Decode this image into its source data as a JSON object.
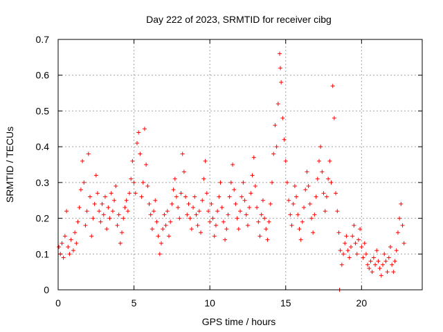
{
  "chart_data": {
    "type": "scatter",
    "title": "Day 222 of 2023, SRMTID for receiver cibg",
    "xlabel": "GPS time / hours",
    "ylabel": "SRMTID / TECUs",
    "xlim": [
      0,
      24
    ],
    "ylim": [
      0,
      0.7
    ],
    "xticks": [
      0,
      5,
      10,
      15,
      20
    ],
    "yticks": [
      0,
      0.1,
      0.2,
      0.3,
      0.4,
      0.5,
      0.6,
      0.7
    ],
    "xtick_labels": [
      "0",
      "5",
      "10",
      "15",
      "20"
    ],
    "ytick_labels": [
      "0",
      "0.1",
      "0.2",
      "0.3",
      "0.4",
      "0.5",
      "0.6",
      "0.7"
    ],
    "grid": true,
    "marker": "plus",
    "color": "#ff0000",
    "series": [
      {
        "name": "SRMTID",
        "points": [
          [
            0.05,
            0.12
          ],
          [
            0.15,
            0.1
          ],
          [
            0.25,
            0.13
          ],
          [
            0.35,
            0.09
          ],
          [
            0.45,
            0.15
          ],
          [
            0.55,
            0.22
          ],
          [
            0.65,
            0.12
          ],
          [
            0.75,
            0.1
          ],
          [
            0.85,
            0.14
          ],
          [
            1.0,
            0.11
          ],
          [
            1.1,
            0.16
          ],
          [
            1.2,
            0.13
          ],
          [
            1.3,
            0.19
          ],
          [
            1.4,
            0.23
          ],
          [
            1.5,
            0.28
          ],
          [
            1.6,
            0.36
          ],
          [
            1.7,
            0.3
          ],
          [
            1.8,
            0.18
          ],
          [
            1.9,
            0.22
          ],
          [
            2.0,
            0.38
          ],
          [
            2.1,
            0.26
          ],
          [
            2.2,
            0.15
          ],
          [
            2.3,
            0.2
          ],
          [
            2.4,
            0.24
          ],
          [
            2.5,
            0.32
          ],
          [
            2.6,
            0.27
          ],
          [
            2.7,
            0.22
          ],
          [
            2.8,
            0.19
          ],
          [
            2.9,
            0.24
          ],
          [
            3.0,
            0.21
          ],
          [
            3.1,
            0.26
          ],
          [
            3.2,
            0.17
          ],
          [
            3.3,
            0.23
          ],
          [
            3.4,
            0.2
          ],
          [
            3.5,
            0.27
          ],
          [
            3.6,
            0.22
          ],
          [
            3.7,
            0.25
          ],
          [
            3.8,
            0.29
          ],
          [
            3.9,
            0.18
          ],
          [
            4.0,
            0.21
          ],
          [
            4.1,
            0.13
          ],
          [
            4.2,
            0.16
          ],
          [
            4.3,
            0.2
          ],
          [
            4.4,
            0.23
          ],
          [
            4.5,
            0.25
          ],
          [
            4.6,
            0.22
          ],
          [
            4.7,
            0.27
          ],
          [
            4.8,
            0.31
          ],
          [
            4.9,
            0.36
          ],
          [
            5.0,
            0.3
          ],
          [
            5.1,
            0.27
          ],
          [
            5.2,
            0.41
          ],
          [
            5.3,
            0.44
          ],
          [
            5.4,
            0.38
          ],
          [
            5.5,
            0.26
          ],
          [
            5.6,
            0.3
          ],
          [
            5.7,
            0.45
          ],
          [
            5.8,
            0.35
          ],
          [
            5.9,
            0.29
          ],
          [
            6.0,
            0.24
          ],
          [
            6.1,
            0.21
          ],
          [
            6.2,
            0.17
          ],
          [
            6.3,
            0.22
          ],
          [
            6.4,
            0.25
          ],
          [
            6.5,
            0.19
          ],
          [
            6.6,
            0.15
          ],
          [
            6.7,
            0.1
          ],
          [
            6.8,
            0.13
          ],
          [
            6.9,
            0.17
          ],
          [
            7.0,
            0.21
          ],
          [
            7.1,
            0.18
          ],
          [
            7.2,
            0.22
          ],
          [
            7.3,
            0.15
          ],
          [
            7.4,
            0.19
          ],
          [
            7.5,
            0.24
          ],
          [
            7.6,
            0.28
          ],
          [
            7.7,
            0.31
          ],
          [
            7.8,
            0.26
          ],
          [
            7.9,
            0.23
          ],
          [
            8.0,
            0.2
          ],
          [
            8.1,
            0.27
          ],
          [
            8.2,
            0.38
          ],
          [
            8.3,
            0.33
          ],
          [
            8.4,
            0.26
          ],
          [
            8.5,
            0.21
          ],
          [
            8.6,
            0.24
          ],
          [
            8.7,
            0.2
          ],
          [
            8.8,
            0.17
          ],
          [
            8.9,
            0.23
          ],
          [
            9.0,
            0.26
          ],
          [
            9.1,
            0.21
          ],
          [
            9.2,
            0.18
          ],
          [
            9.3,
            0.22
          ],
          [
            9.4,
            0.16
          ],
          [
            9.5,
            0.25
          ],
          [
            9.6,
            0.31
          ],
          [
            9.7,
            0.36
          ],
          [
            9.8,
            0.27
          ],
          [
            9.9,
            0.22
          ],
          [
            10.0,
            0.19
          ],
          [
            10.1,
            0.24
          ],
          [
            10.2,
            0.2
          ],
          [
            10.3,
            0.15
          ],
          [
            10.4,
            0.18
          ],
          [
            10.5,
            0.22
          ],
          [
            10.6,
            0.26
          ],
          [
            10.7,
            0.3
          ],
          [
            10.8,
            0.23
          ],
          [
            10.9,
            0.19
          ],
          [
            11.0,
            0.14
          ],
          [
            11.1,
            0.17
          ],
          [
            11.2,
            0.21
          ],
          [
            11.3,
            0.26
          ],
          [
            11.4,
            0.3
          ],
          [
            11.5,
            0.35
          ],
          [
            11.6,
            0.28
          ],
          [
            11.7,
            0.24
          ],
          [
            11.8,
            0.2
          ],
          [
            11.9,
            0.17
          ],
          [
            12.0,
            0.22
          ],
          [
            12.1,
            0.26
          ],
          [
            12.2,
            0.3
          ],
          [
            12.3,
            0.25
          ],
          [
            12.4,
            0.21
          ],
          [
            12.5,
            0.18
          ],
          [
            12.6,
            0.23
          ],
          [
            12.7,
            0.27
          ],
          [
            12.8,
            0.32
          ],
          [
            12.9,
            0.37
          ],
          [
            13.0,
            0.29
          ],
          [
            13.1,
            0.23
          ],
          [
            13.2,
            0.19
          ],
          [
            13.3,
            0.15
          ],
          [
            13.4,
            0.21
          ],
          [
            13.5,
            0.25
          ],
          [
            13.6,
            0.2
          ],
          [
            13.7,
            0.17
          ],
          [
            13.8,
            0.14
          ],
          [
            13.9,
            0.19
          ],
          [
            14.0,
            0.24
          ],
          [
            14.1,
            0.3
          ],
          [
            14.2,
            0.38
          ],
          [
            14.3,
            0.46
          ],
          [
            14.4,
            0.4
          ],
          [
            14.5,
            0.52
          ],
          [
            14.6,
            0.66
          ],
          [
            14.65,
            0.62
          ],
          [
            14.7,
            0.58
          ],
          [
            14.8,
            0.48
          ],
          [
            14.9,
            0.42
          ],
          [
            15.0,
            0.36
          ],
          [
            15.1,
            0.3
          ],
          [
            15.2,
            0.25
          ],
          [
            15.3,
            0.21
          ],
          [
            15.4,
            0.18
          ],
          [
            15.5,
            0.24
          ],
          [
            15.6,
            0.29
          ],
          [
            15.7,
            0.26
          ],
          [
            15.8,
            0.21
          ],
          [
            15.9,
            0.17
          ],
          [
            16.0,
            0.14
          ],
          [
            16.1,
            0.19
          ],
          [
            16.2,
            0.23
          ],
          [
            16.3,
            0.28
          ],
          [
            16.4,
            0.33
          ],
          [
            16.5,
            0.29
          ],
          [
            16.6,
            0.24
          ],
          [
            16.7,
            0.2
          ],
          [
            16.8,
            0.16
          ],
          [
            16.9,
            0.21
          ],
          [
            17.0,
            0.26
          ],
          [
            17.1,
            0.31
          ],
          [
            17.2,
            0.36
          ],
          [
            17.3,
            0.4
          ],
          [
            17.4,
            0.33
          ],
          [
            17.5,
            0.27
          ],
          [
            17.6,
            0.22
          ],
          [
            17.7,
            0.26
          ],
          [
            17.8,
            0.31
          ],
          [
            17.9,
            0.36
          ],
          [
            18.0,
            0.3
          ],
          [
            18.1,
            0.57
          ],
          [
            18.2,
            0.48
          ],
          [
            18.3,
            0.27
          ],
          [
            18.4,
            0.22
          ],
          [
            18.5,
            0.16
          ],
          [
            18.55,
            0.0
          ],
          [
            18.6,
            0.11
          ],
          [
            18.7,
            0.07
          ],
          [
            18.8,
            0.1
          ],
          [
            18.9,
            0.13
          ],
          [
            19.0,
            0.15
          ],
          [
            19.1,
            0.11
          ],
          [
            19.2,
            0.09
          ],
          [
            19.3,
            0.12
          ],
          [
            19.4,
            0.15
          ],
          [
            19.5,
            0.18
          ],
          [
            19.6,
            0.13
          ],
          [
            19.7,
            0.1
          ],
          [
            19.8,
            0.14
          ],
          [
            19.9,
            0.17
          ],
          [
            20.0,
            0.12
          ],
          [
            20.1,
            0.09
          ],
          [
            20.2,
            0.13
          ],
          [
            20.3,
            0.1
          ],
          [
            20.4,
            0.07
          ],
          [
            20.5,
            0.06
          ],
          [
            20.6,
            0.08
          ],
          [
            20.7,
            0.05
          ],
          [
            20.8,
            0.09
          ],
          [
            20.9,
            0.07
          ],
          [
            21.0,
            0.11
          ],
          [
            21.1,
            0.08
          ],
          [
            21.2,
            0.06
          ],
          [
            21.3,
            0.04
          ],
          [
            21.4,
            0.07
          ],
          [
            21.5,
            0.1
          ],
          [
            21.6,
            0.08
          ],
          [
            21.7,
            0.05
          ],
          [
            21.8,
            0.09
          ],
          [
            21.9,
            0.12
          ],
          [
            22.0,
            0.07
          ],
          [
            22.1,
            0.05
          ],
          [
            22.2,
            0.08
          ],
          [
            22.3,
            0.11
          ],
          [
            22.4,
            0.16
          ],
          [
            22.5,
            0.2
          ],
          [
            22.6,
            0.24
          ],
          [
            22.7,
            0.18
          ],
          [
            22.8,
            0.13
          ]
        ]
      }
    ]
  }
}
